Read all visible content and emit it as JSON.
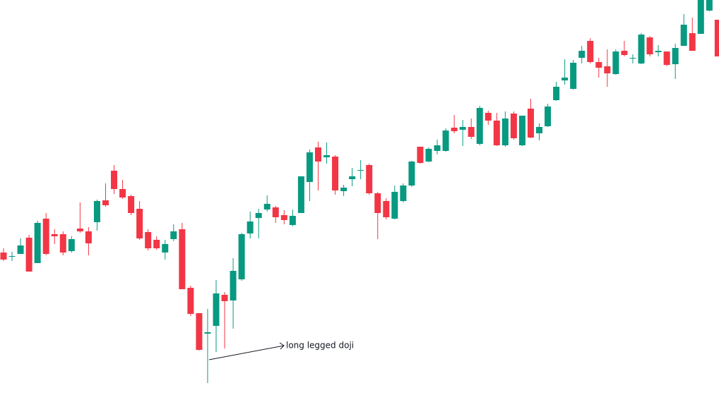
{
  "chart_data": {
    "type": "candlestick",
    "annotation": "long legged doji",
    "up_color": "#089981",
    "down_color": "#f23645",
    "ylim": [
      0,
      560
    ],
    "open": [
      202,
      196,
      200,
      223,
      187,
      250,
      228,
      228,
      204,
      236,
      232,
      245,
      276,
      318,
      292,
      282,
      264,
      231,
      220,
      202,
      221,
      235,
      152,
      116,
      87,
      98,
      142,
      134,
      164,
      229,
      251,
      263,
      266,
      255,
      241,
      258,
      302,
      351,
      337,
      338,
      289,
      306,
      318,
      326,
      286,
      275,
      250,
      275,
      297,
      352,
      331,
      346,
      346,
      379,
      376,
      380,
      356,
      400,
      389,
      354,
      399,
      354,
      406,
      371,
      381,
      418,
      446,
      434,
      478,
      502,
      472,
      466,
      455,
      488,
      477,
      470,
      507,
      486,
      487,
      469,
      495,
      513,
      512,
      545,
      532
    ],
    "high": [
      208,
      203,
      222,
      227,
      247,
      258,
      235,
      232,
      225,
      273,
      238,
      277,
      300,
      326,
      305,
      284,
      275,
      235,
      225,
      220,
      242,
      244,
      155,
      116,
      122,
      163,
      146,
      194,
      230,
      260,
      264,
      283,
      268,
      262,
      263,
      310,
      348,
      359,
      358,
      340,
      298,
      322,
      333,
      328,
      288,
      279,
      297,
      300,
      332,
      352,
      351,
      362,
      378,
      397,
      390,
      392,
      410,
      403,
      400,
      402,
      402,
      396,
      420,
      385,
      413,
      444,
      476,
      475,
      495,
      506,
      478,
      490,
      490,
      502,
      483,
      513,
      509,
      496,
      487,
      498,
      540,
      535,
      560,
      560,
      532
    ],
    "low": [
      190,
      190,
      200,
      175,
      187,
      198,
      214,
      198,
      202,
      230,
      198,
      233,
      267,
      285,
      278,
      255,
      220,
      205,
      206,
      192,
      218,
      150,
      112,
      63,
      17,
      61,
      66,
      94,
      162,
      222,
      222,
      260,
      244,
      242,
      239,
      258,
      275,
      290,
      328,
      284,
      282,
      296,
      306,
      284,
      221,
      249,
      249,
      273,
      295,
      328,
      330,
      341,
      345,
      371,
      353,
      363,
      354,
      383,
      353,
      352,
      362,
      353,
      364,
      361,
      380,
      417,
      440,
      433,
      470,
      470,
      450,
      437,
      454,
      480,
      470,
      469,
      480,
      480,
      466,
      448,
      495,
      488,
      512,
      544,
      480
    ],
    "close": [
      192,
      197,
      212,
      175,
      244,
      200,
      225,
      202,
      221,
      232,
      215,
      275,
      269,
      292,
      280,
      258,
      222,
      208,
      208,
      214,
      232,
      150,
      115,
      64,
      89,
      144,
      133,
      176,
      228,
      246,
      258,
      271,
      252,
      248,
      254,
      310,
      344,
      331,
      340,
      290,
      294,
      310,
      319,
      286,
      258,
      252,
      288,
      297,
      331,
      329,
      349,
      354,
      375,
      374,
      380,
      366,
      407,
      389,
      354,
      392,
      364,
      396,
      365,
      380,
      409,
      437,
      450,
      471,
      488,
      472,
      464,
      456,
      487,
      482,
      478,
      511,
      483,
      488,
      468,
      492,
      525,
      488,
      560,
      560,
      480
    ]
  }
}
